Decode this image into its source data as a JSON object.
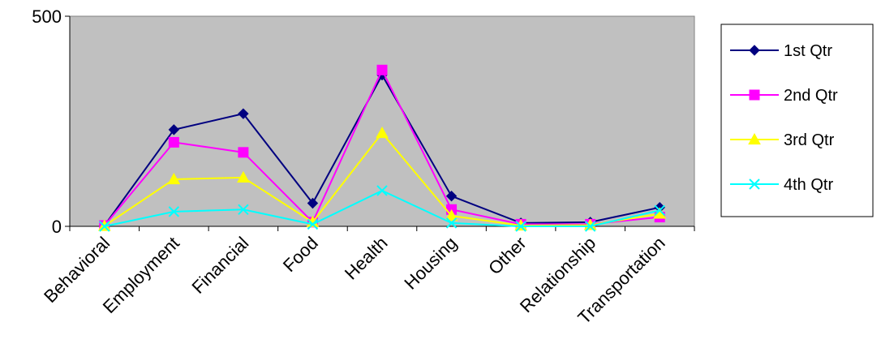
{
  "chart_data": {
    "type": "line",
    "title": "",
    "xlabel": "",
    "ylabel": "",
    "ylim": [
      0,
      500
    ],
    "yticks": [
      "0",
      "500"
    ],
    "grid": false,
    "legend_placement": "right",
    "plot_background": "#c0c0c0",
    "categories": [
      "Behavioral",
      "Employment",
      "Financial",
      "Food",
      "Health",
      "Housing",
      "Other",
      "Relationship",
      "Transportation"
    ],
    "series": [
      {
        "name": "1st Qtr",
        "color": "#000080",
        "marker": "diamond",
        "values": [
          2,
          230,
          268,
          55,
          360,
          72,
          8,
          10,
          45
        ]
      },
      {
        "name": "2nd Qtr",
        "color": "#ff00ff",
        "marker": "square",
        "values": [
          2,
          200,
          176,
          10,
          372,
          40,
          5,
          5,
          22
        ]
      },
      {
        "name": "3rd Qtr",
        "color": "#ffff00",
        "marker": "triangle",
        "values": [
          1,
          112,
          116,
          10,
          222,
          25,
          2,
          3,
          30
        ]
      },
      {
        "name": "4th Qtr",
        "color": "#00ffff",
        "marker": "x",
        "values": [
          0,
          35,
          40,
          5,
          85,
          8,
          0,
          0,
          38
        ]
      }
    ]
  }
}
